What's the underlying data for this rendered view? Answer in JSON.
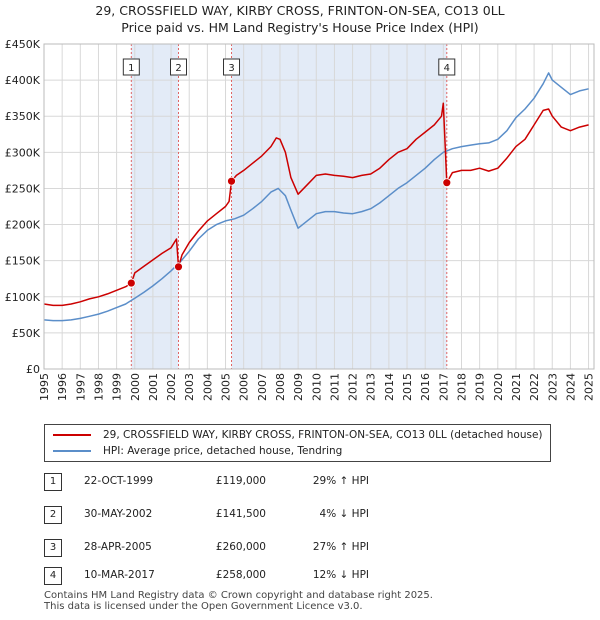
{
  "header": {
    "title_line1": "29, CROSSFIELD WAY, KIRBY CROSS, FRINTON-ON-SEA, CO13 0LL",
    "title_line2": "Price paid vs. HM Land Registry's House Price Index (HPI)"
  },
  "legend": {
    "property_label": "29, CROSSFIELD WAY, KIRBY CROSS, FRINTON-ON-SEA, CO13 0LL (detached house)",
    "hpi_label": "HPI: Average price, detached house, Tendring"
  },
  "sales": [
    {
      "num": "1",
      "date": "22-OCT-1999",
      "price": "£119,000",
      "hpi": "29% ↑ HPI"
    },
    {
      "num": "2",
      "date": "30-MAY-2002",
      "price": "£141,500",
      "hpi": "4% ↓ HPI"
    },
    {
      "num": "3",
      "date": "28-APR-2005",
      "price": "£260,000",
      "hpi": "27% ↑ HPI"
    },
    {
      "num": "4",
      "date": "10-MAR-2017",
      "price": "£258,000",
      "hpi": "12% ↓ HPI"
    }
  ],
  "footer": {
    "line1": "Contains HM Land Registry data © Crown copyright and database right 2025.",
    "line2": "This data is licensed under the Open Government Licence v3.0."
  },
  "chart_data": {
    "type": "line",
    "xlim": [
      1995,
      2025.3
    ],
    "ylim": [
      0,
      450000
    ],
    "x_ticks": [
      1995,
      1996,
      1997,
      1998,
      1999,
      2000,
      2001,
      2002,
      2003,
      2004,
      2005,
      2006,
      2007,
      2008,
      2009,
      2010,
      2011,
      2012,
      2013,
      2014,
      2015,
      2016,
      2017,
      2018,
      2019,
      2020,
      2021,
      2022,
      2023,
      2024,
      2025
    ],
    "y_ticks": [
      0,
      50000,
      100000,
      150000,
      200000,
      250000,
      300000,
      350000,
      400000,
      450000
    ],
    "y_tick_labels": [
      "£0",
      "£50K",
      "£100K",
      "£150K",
      "£200K",
      "£250K",
      "£300K",
      "£350K",
      "£400K",
      "£450K"
    ],
    "colors": {
      "property": "#cc0000",
      "hpi": "#5b8ec9",
      "shade": "#dce6f5",
      "marker_line": "#e06666"
    },
    "series": [
      {
        "name": "29, CROSSFIELD WAY, KIRBY CROSS, FRINTON-ON-SEA, CO13 0LL (detached house)",
        "x": [
          1995,
          1995.5,
          1996,
          1996.5,
          1997,
          1997.5,
          1998,
          1998.5,
          1999,
          1999.5,
          1999.81,
          2000,
          2000.5,
          2001,
          2001.5,
          2002,
          2002.3,
          2002.41,
          2002.6,
          2003,
          2003.5,
          2004,
          2004.5,
          2005,
          2005.2,
          2005.33,
          2005.6,
          2006,
          2006.5,
          2007,
          2007.5,
          2007.8,
          2008,
          2008.3,
          2008.6,
          2009,
          2009.5,
          2010,
          2010.5,
          2011,
          2011.5,
          2012,
          2012.5,
          2013,
          2013.5,
          2014,
          2014.5,
          2015,
          2015.5,
          2016,
          2016.5,
          2016.9,
          2017,
          2017.19,
          2017.5,
          2018,
          2018.5,
          2019,
          2019.5,
          2020,
          2020.5,
          2021,
          2021.5,
          2022,
          2022.5,
          2022.8,
          2023,
          2023.5,
          2024,
          2024.5,
          2025
        ],
        "values": [
          90000,
          88000,
          88000,
          90000,
          93000,
          97000,
          100000,
          104000,
          109000,
          114000,
          119000,
          133000,
          142000,
          151000,
          160000,
          168000,
          180000,
          141500,
          158000,
          175000,
          191000,
          205000,
          215000,
          225000,
          232000,
          260000,
          268000,
          275000,
          285000,
          295000,
          308000,
          320000,
          318000,
          300000,
          265000,
          242000,
          255000,
          268000,
          270000,
          268000,
          267000,
          265000,
          268000,
          270000,
          278000,
          290000,
          300000,
          305000,
          318000,
          328000,
          338000,
          350000,
          368000,
          258000,
          272000,
          275000,
          275000,
          278000,
          274000,
          278000,
          292000,
          308000,
          318000,
          338000,
          358000,
          360000,
          350000,
          335000,
          330000,
          335000,
          338000
        ]
      },
      {
        "name": "HPI: Average price, detached house, Tendring",
        "x": [
          1995,
          1995.5,
          1996,
          1996.5,
          1997,
          1997.5,
          1998,
          1998.5,
          1999,
          1999.5,
          2000,
          2000.5,
          2001,
          2001.5,
          2002,
          2002.5,
          2003,
          2003.5,
          2004,
          2004.5,
          2005,
          2005.5,
          2006,
          2006.5,
          2007,
          2007.5,
          2007.9,
          2008.3,
          2008.6,
          2009,
          2009.5,
          2010,
          2010.5,
          2011,
          2011.5,
          2012,
          2012.5,
          2013,
          2013.5,
          2014,
          2014.5,
          2015,
          2015.5,
          2016,
          2016.5,
          2017,
          2017.5,
          2018,
          2018.5,
          2019,
          2019.5,
          2020,
          2020.5,
          2021,
          2021.5,
          2022,
          2022.5,
          2022.8,
          2023,
          2023.5,
          2024,
          2024.5,
          2025
        ],
        "values": [
          68000,
          67000,
          67000,
          68000,
          70000,
          73000,
          76000,
          80000,
          85000,
          90000,
          98000,
          106000,
          115000,
          125000,
          136000,
          148000,
          163000,
          180000,
          192000,
          200000,
          205000,
          208000,
          213000,
          222000,
          232000,
          245000,
          250000,
          240000,
          220000,
          195000,
          205000,
          215000,
          218000,
          218000,
          216000,
          215000,
          218000,
          222000,
          230000,
          240000,
          250000,
          258000,
          268000,
          278000,
          290000,
          300000,
          305000,
          308000,
          310000,
          312000,
          313000,
          318000,
          330000,
          348000,
          360000,
          375000,
          395000,
          410000,
          400000,
          390000,
          380000,
          385000,
          388000
        ]
      }
    ],
    "sales_markers": [
      {
        "label": "1",
        "x": 1999.81,
        "y": 119000
      },
      {
        "label": "2",
        "x": 2002.41,
        "y": 141500
      },
      {
        "label": "3",
        "x": 2005.33,
        "y": 260000
      },
      {
        "label": "4",
        "x": 2017.19,
        "y": 258000
      }
    ],
    "shaded_ranges": [
      [
        1999.81,
        2002.41
      ],
      [
        2005.33,
        2017.19
      ]
    ]
  }
}
